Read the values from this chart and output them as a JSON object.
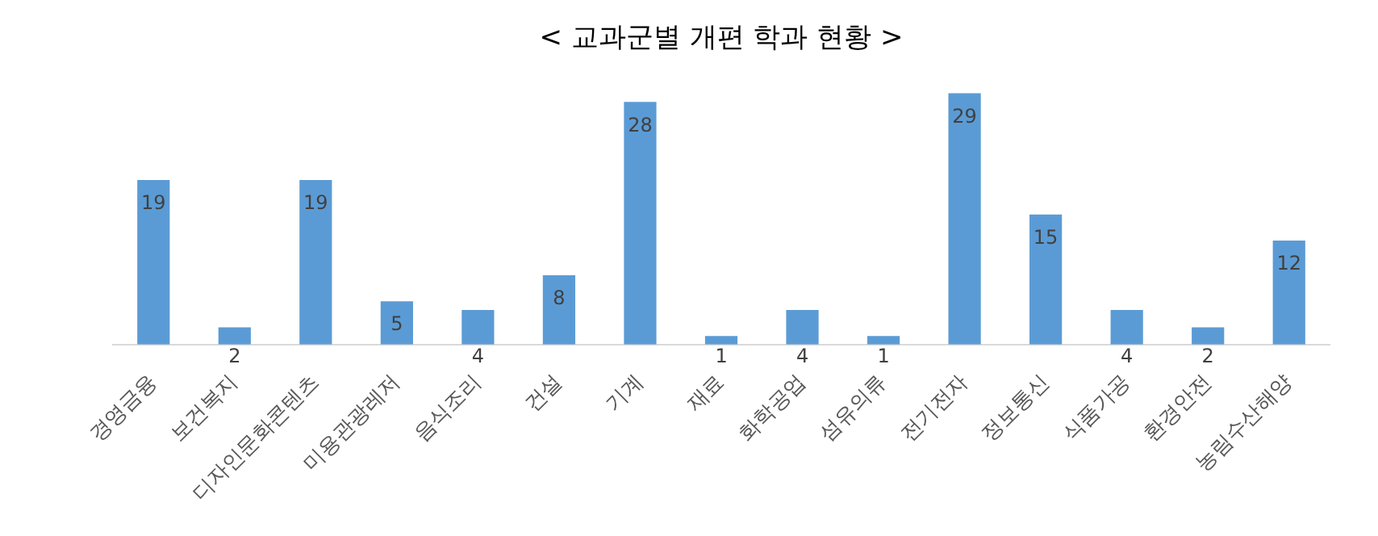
{
  "chart_data": {
    "type": "bar",
    "title": "< 교과군별 개편 학과 현황 >",
    "categories": [
      "경영금융",
      "보건복지",
      "디자인문화콘텐츠",
      "미용관광레저",
      "음식조리",
      "건설",
      "기계",
      "재료",
      "화학공업",
      "섬유의류",
      "전기전자",
      "정보통신",
      "식품가공",
      "환경안전",
      "농림수산해양"
    ],
    "values": [
      19,
      2,
      19,
      5,
      4,
      8,
      28,
      1,
      4,
      1,
      29,
      15,
      4,
      2,
      12
    ],
    "color": "#5b9bd5",
    "data_labels": true,
    "grid": false,
    "legend": false,
    "tick_labels": "x"
  }
}
